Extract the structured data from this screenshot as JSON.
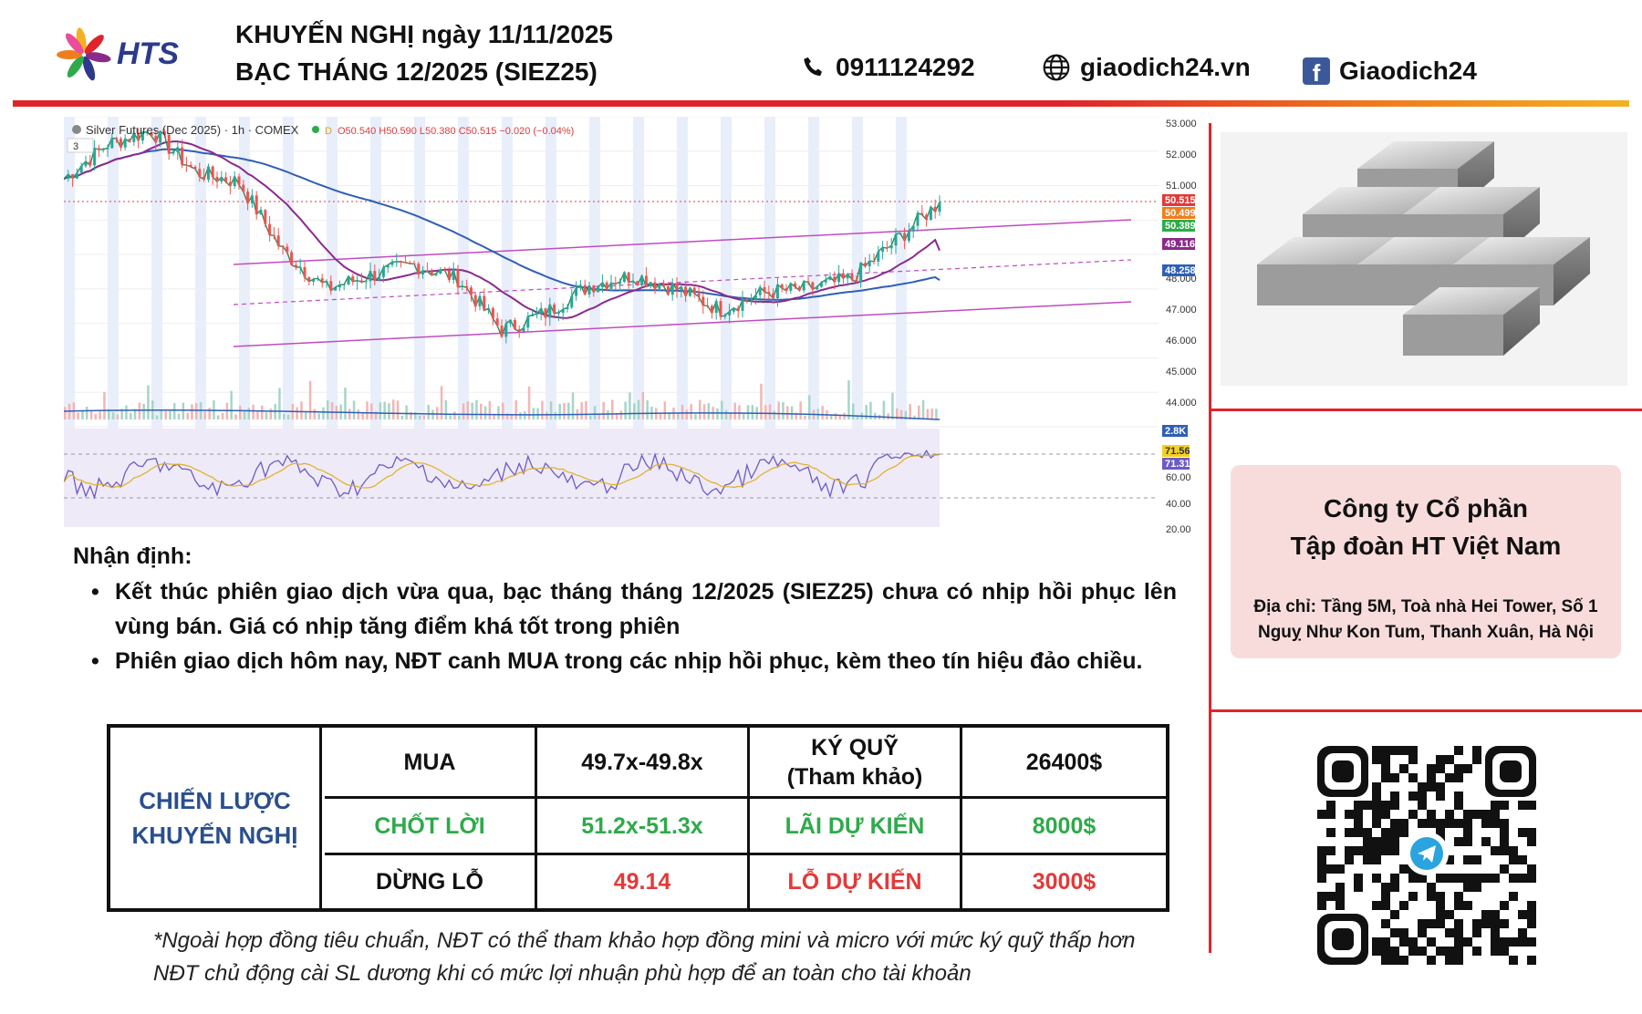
{
  "header": {
    "brand": "HTS",
    "title_line1": "KHUYẾN NGHỊ ngày 11/11/2025",
    "title_line2": "BẠC THÁNG 12/2025 (SIEZ25)",
    "phone": "0911124292",
    "website": "giaodich24.vn",
    "facebook": "Giaodich24",
    "facebook_icon_letter": "f",
    "colors": {
      "accent_red": "#e0242b",
      "accent_orange": "#f4b023",
      "brand_blue": "#2b3a8c"
    }
  },
  "chart": {
    "legend": "Silver Futures (Dec 2025) · 1h · COMEX",
    "ohlc": "O50.540 H50.590 L50.380 C50.515 −0.020 (−0.04%)",
    "badge_d": "D",
    "indicator_count": "3",
    "price_ticks": [
      "53.000",
      "52.000",
      "51.000",
      "48.000",
      "47.000",
      "46.000",
      "45.000",
      "44.000"
    ],
    "price_labels": [
      "50.515",
      "50.499",
      "50.389",
      "49.116",
      "48.258"
    ],
    "volume_label": "2.8K",
    "rsi_ticks": [
      "60.00",
      "40.00",
      "20.00"
    ],
    "rsi_labels": [
      "71.56",
      "71.31"
    ]
  },
  "chart_data": {
    "type": "line",
    "title": "Silver Futures (Dec 2025) · 1h · COMEX",
    "x": [
      0,
      5,
      10,
      15,
      20,
      25,
      30,
      35,
      40,
      45,
      50,
      55,
      60,
      65,
      70,
      75,
      80,
      85,
      90,
      95,
      100
    ],
    "series": [
      {
        "values": [
          51.2,
          52.2,
          52.6,
          51.4,
          51.1,
          49.1,
          48.0,
          48.4,
          48.7,
          48.3,
          46.8,
          47.3,
          48.1,
          48.4,
          48.0,
          47.4,
          47.9,
          48.0,
          48.3,
          49.4,
          50.52
        ]
      }
    ],
    "ylim": [
      44.0,
      53.0
    ],
    "last_close": 50.515,
    "moving_averages": [
      49.116,
      48.258
    ],
    "rsi": [
      71.56,
      71.31
    ],
    "volume_last": "2.8K",
    "grid": true
  },
  "analysis": {
    "title": "Nhận định:",
    "bullets": [
      "Kết thúc phiên giao dịch vừa qua, bạc tháng tháng 12/2025 (SIEZ25) chưa có nhịp hồi phục lên vùng bán. Giá có nhịp tăng điểm khá tốt trong phiên",
      "Phiên giao dịch hôm nay, NĐT canh MUA trong các nhịp hồi phục, kèm theo tín hiệu đảo chiều."
    ]
  },
  "strategy": {
    "label_line1": "CHIẾN LƯỢC",
    "label_line2": "KHUYẾN NGHỊ",
    "rows": [
      [
        "MUA",
        "49.7x-49.8x",
        "KÝ QUỸ",
        "26400$"
      ],
      [
        "CHỐT LỜI",
        "51.2x-51.3x",
        "LÃI DỰ KIẾN",
        "8000$"
      ],
      [
        "DỪNG LỖ",
        "49.14",
        "LỖ DỰ KIẾN",
        "3000$"
      ]
    ],
    "margin_note": "(Tham khảo)",
    "colors": {
      "label_blue": "#2a4f8f",
      "green": "#2eaa4a",
      "red": "#e23a3a"
    }
  },
  "footnotes": [
    "*Ngoài hợp đồng tiêu chuẩn, NĐT có thể tham khảo hợp đồng mini và micro với mức ký quỹ thấp hơn",
    "NĐT chủ động cài SL dương khi có mức lợi nhuận phù hợp để an toàn cho tài khoản"
  ],
  "company": {
    "name_line1": "Công ty Cổ phần",
    "name_line2": "Tập đoàn HT Việt Nam",
    "address": "Địa chỉ: Tầng 5M, Toà nhà Hei Tower, Số 1 Nguỵ Như Kon Tum, Thanh Xuân, Hà Nội"
  }
}
